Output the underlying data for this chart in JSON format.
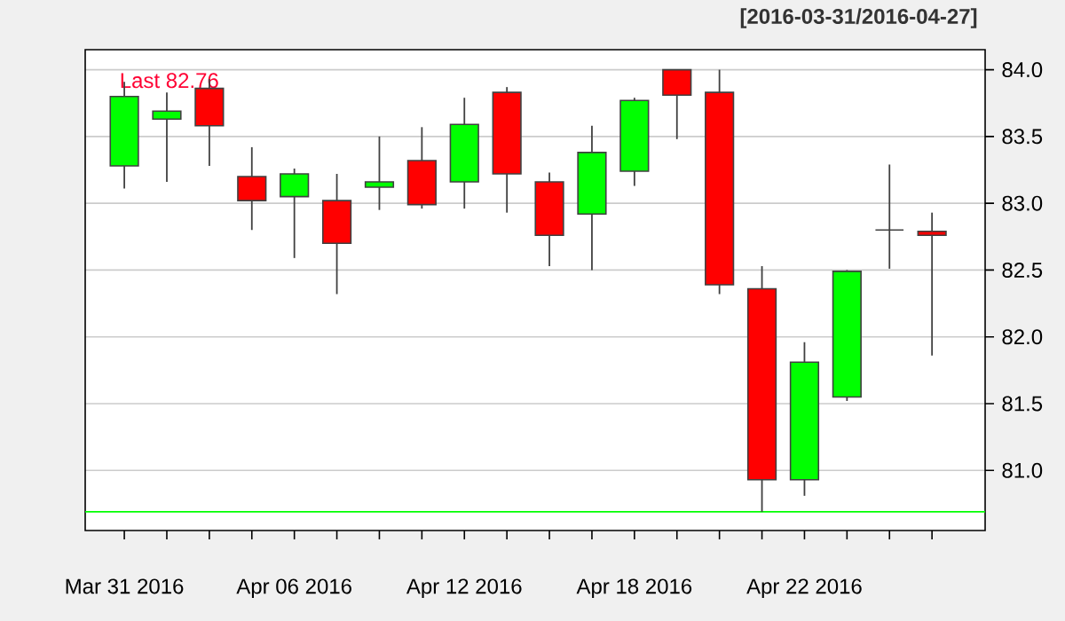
{
  "chart_data": {
    "type": "candlestick",
    "title": "[2016-03-31/2016-04-27]",
    "categories": [
      "Mar 31 2016",
      null,
      null,
      null,
      "Apr 06 2016",
      null,
      null,
      null,
      "Apr 12 2016",
      null,
      null,
      null,
      "Apr 18 2016",
      null,
      null,
      null,
      "Apr 22 2016",
      null,
      null,
      null
    ],
    "ohlc": [
      [
        83.28,
        83.91,
        83.11,
        83.8
      ],
      [
        83.63,
        83.83,
        83.16,
        83.69
      ],
      [
        83.86,
        83.93,
        83.28,
        83.58
      ],
      [
        83.2,
        83.42,
        82.8,
        83.02
      ],
      [
        83.05,
        83.26,
        82.59,
        83.22
      ],
      [
        83.02,
        83.22,
        82.32,
        82.7
      ],
      [
        83.12,
        83.5,
        82.95,
        83.16
      ],
      [
        83.32,
        83.57,
        82.96,
        82.99
      ],
      [
        83.16,
        83.79,
        82.96,
        83.59
      ],
      [
        83.83,
        83.87,
        82.93,
        83.22
      ],
      [
        83.16,
        83.23,
        82.53,
        82.76
      ],
      [
        82.92,
        83.58,
        82.5,
        83.38
      ],
      [
        83.24,
        83.79,
        83.13,
        83.77
      ],
      [
        84.0,
        84.0,
        83.48,
        83.81
      ],
      [
        83.83,
        84.0,
        82.32,
        82.39
      ],
      [
        82.36,
        82.53,
        80.69,
        80.93
      ],
      [
        80.93,
        81.96,
        80.81,
        81.81
      ],
      [
        81.55,
        82.5,
        81.52,
        82.49
      ],
      [
        82.8,
        83.29,
        82.51,
        82.8
      ],
      [
        82.79,
        82.93,
        81.86,
        82.76
      ]
    ],
    "colors": [
      "#00ff00",
      "#00ff00",
      "#ff0000",
      "#ff0000",
      "#00ff00",
      "#ff0000",
      "#00ff00",
      "#ff0000",
      "#00ff00",
      "#ff0000",
      "#ff0000",
      "#00ff00",
      "#00ff00",
      "#ff0000",
      "#ff0000",
      "#ff0000",
      "#00ff00",
      "#00ff00",
      "#404040",
      "#ff0000"
    ],
    "ylim": [
      80.55,
      84.15
    ],
    "yticks": [
      {
        "value": 81,
        "label": "81.0"
      },
      {
        "value": 81.5,
        "label": "81.5"
      },
      {
        "value": 82,
        "label": "82.0"
      },
      {
        "value": 82.5,
        "label": "82.5"
      },
      {
        "value": 83,
        "label": "83.0"
      },
      {
        "value": 83.5,
        "label": "83.5"
      },
      {
        "value": 84,
        "label": "84.0"
      }
    ],
    "grid": "y",
    "ref_lines": [
      {
        "axis": "y",
        "value": 80.69,
        "color": "#00ff00"
      }
    ],
    "annotations": [
      "Last 82.76"
    ]
  }
}
